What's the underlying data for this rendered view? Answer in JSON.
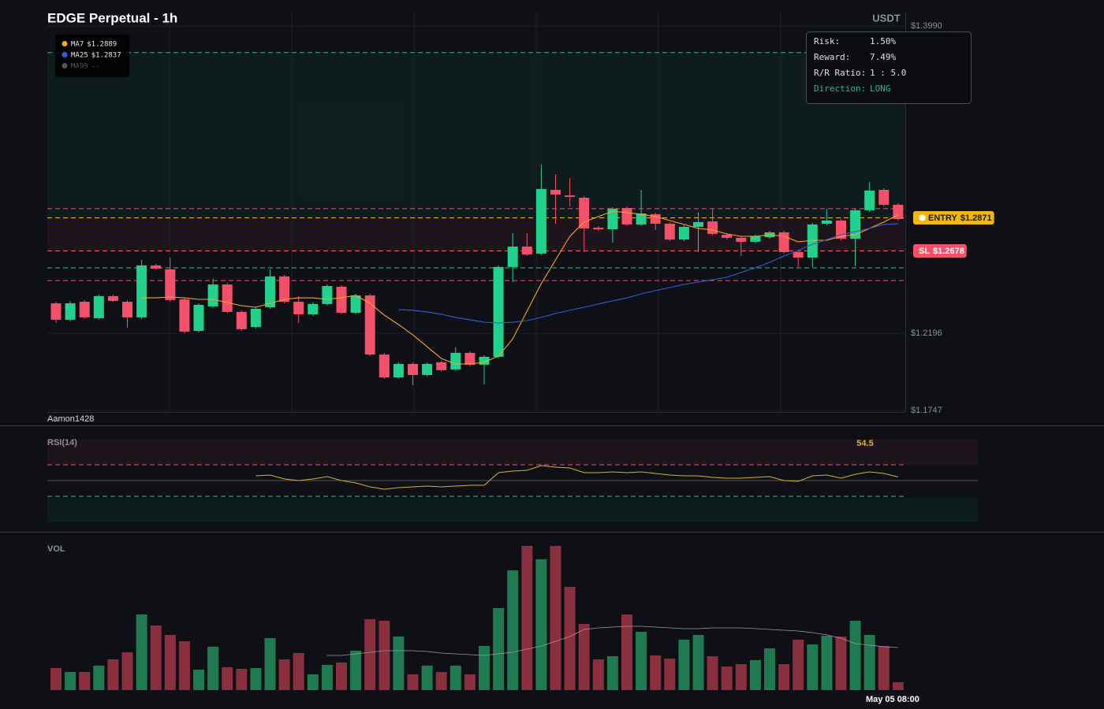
{
  "chart_data": [
    {
      "type": "candlestick",
      "title": "EDGE Perpetual - 1h",
      "y_label": "USDT",
      "watermark": "Aamon1428",
      "up_color": "#22d18b",
      "down_color": "#f4506a",
      "ylim": [
        1.1747,
        1.399
      ],
      "yticks": [
        {
          "value": 1.1747,
          "label": "$1.1747"
        },
        {
          "value": 1.2196,
          "label": "$1.2196"
        },
        {
          "value": 1.399,
          "label": "$1.3990"
        }
      ],
      "open": [
        1.2372,
        1.2276,
        1.2381,
        1.2285,
        1.2414,
        1.2381,
        1.229,
        1.2593,
        1.257,
        1.2395,
        1.2211,
        1.2354,
        1.2482,
        1.2322,
        1.2234,
        1.2349,
        1.2529,
        1.2381,
        1.2308,
        1.2368,
        1.2469,
        1.2317,
        1.2418,
        1.2073,
        1.194,
        1.2018,
        1.1954,
        1.2028,
        1.1986,
        1.2083,
        1.2014,
        1.206,
        1.2584,
        1.2703,
        1.2662,
        1.3034,
        1.3002,
        1.2988,
        1.2813,
        1.2804,
        1.2928,
        1.2832,
        1.2892,
        1.2836,
        1.2744,
        1.2818,
        1.285,
        1.2772,
        1.2754,
        1.2731,
        1.2758,
        1.2786,
        1.2671,
        1.2639,
        1.2836,
        1.2855,
        1.2749,
        1.2915,
        1.3034,
        1.2947
      ],
      "high": [
        1.2381,
        1.2386,
        1.239,
        1.2423,
        1.2423,
        1.239,
        1.2625,
        1.2602,
        1.2639,
        1.2404,
        1.2372,
        1.2515,
        1.2491,
        1.2331,
        1.2349,
        1.257,
        1.2538,
        1.2414,
        1.2377,
        1.2482,
        1.2478,
        1.2427,
        1.2427,
        1.2082,
        1.2027,
        1.2027,
        1.2027,
        1.2037,
        1.2115,
        1.2092,
        1.2069,
        1.2593,
        1.2781,
        1.2781,
        1.3181,
        1.3126,
        1.3103,
        1.2997,
        1.2822,
        1.2933,
        1.2937,
        1.3034,
        1.2901,
        1.2845,
        1.2827,
        1.2901,
        1.2924,
        1.2781,
        1.2763,
        1.2772,
        1.2795,
        1.2795,
        1.268,
        1.2841,
        1.2924,
        1.2864,
        1.2924,
        1.308,
        1.3043,
        1.2956
      ],
      "low": [
        1.2257,
        1.2267,
        1.2281,
        1.2276,
        1.2381,
        1.223,
        1.2281,
        1.257,
        1.2381,
        1.2198,
        1.2202,
        1.2345,
        1.2313,
        1.2212,
        1.2225,
        1.234,
        1.2372,
        1.2257,
        1.2299,
        1.2359,
        1.2308,
        1.2308,
        1.2064,
        1.1931,
        1.1931,
        1.1894,
        1.1945,
        1.1973,
        1.1977,
        1.2005,
        1.1899,
        1.2051,
        1.2496,
        1.2648,
        1.2653,
        1.2836,
        1.2938,
        1.2671,
        1.2795,
        1.2726,
        1.2823,
        1.2823,
        1.28,
        1.2735,
        1.2735,
        1.2671,
        1.2768,
        1.2745,
        1.2648,
        1.2722,
        1.2749,
        1.2662,
        1.2584,
        1.2584,
        1.2827,
        1.274,
        1.2588,
        1.2906,
        1.2938,
        1.2855
      ],
      "close": [
        1.2276,
        1.2372,
        1.229,
        1.2414,
        1.2386,
        1.229,
        1.2593,
        1.2574,
        1.2391,
        1.2207,
        1.2363,
        1.2482,
        1.2322,
        1.2221,
        1.234,
        1.2529,
        1.2381,
        1.2308,
        1.2368,
        1.2473,
        1.2317,
        1.2418,
        1.2073,
        1.194,
        1.2018,
        1.1954,
        1.2018,
        1.1982,
        1.2083,
        1.2014,
        1.206,
        1.2584,
        1.2703,
        1.2657,
        1.3039,
        1.3007,
        1.2993,
        1.2809,
        1.2804,
        1.2924,
        1.2832,
        1.2896,
        1.2836,
        1.2744,
        1.2818,
        1.2846,
        1.2777,
        1.2754,
        1.2731,
        1.2763,
        1.2786,
        1.2671,
        1.2639,
        1.2832,
        1.2855,
        1.2749,
        1.2915,
        1.303,
        1.2947,
        1.2864
      ],
      "overlays": [
        {
          "name": "MA7",
          "color": "#f5a623",
          "last_label": "$1.2889",
          "values": [
            null,
            null,
            null,
            null,
            null,
            null,
            1.2404,
            1.2404,
            1.2409,
            1.2404,
            1.2395,
            1.2395,
            1.2377,
            1.2358,
            1.2349,
            1.2372,
            1.2395,
            1.2404,
            1.2404,
            1.2395,
            1.2404,
            1.2418,
            1.2372,
            1.2303,
            1.2248,
            1.2188,
            1.2119,
            1.205,
            1.2018,
            1.2018,
            1.2028,
            1.2064,
            1.2165,
            1.2326,
            1.2487,
            1.2625,
            1.2763,
            1.2846,
            1.2878,
            1.291,
            1.2901,
            1.2892,
            1.2878,
            1.2855,
            1.2832,
            1.2809,
            1.28,
            1.2777,
            1.2763,
            1.2763,
            1.2772,
            1.2763,
            1.2731,
            1.274,
            1.274,
            1.2763,
            1.2772,
            1.2809,
            1.2846,
            1.2889
          ]
        },
        {
          "name": "MA25",
          "color": "#2f5fd8",
          "last_label": "$1.2837",
          "values": [
            null,
            null,
            null,
            null,
            null,
            null,
            null,
            null,
            null,
            null,
            null,
            null,
            null,
            null,
            null,
            null,
            null,
            null,
            null,
            null,
            null,
            null,
            null,
            null,
            1.2336,
            1.2331,
            1.2322,
            1.2308,
            1.229,
            1.2276,
            1.2262,
            1.2257,
            1.2262,
            1.2271,
            1.229,
            1.2313,
            1.2331,
            1.2349,
            1.2368,
            1.2386,
            1.2404,
            1.2427,
            1.2446,
            1.2464,
            1.2482,
            1.2496,
            1.251,
            1.2524,
            1.2552,
            1.2579,
            1.2611,
            1.2648,
            1.268,
            1.2717,
            1.2744,
            1.2772,
            1.279,
            1.2809,
            1.2832,
            1.2837
          ]
        },
        {
          "name": "MA99",
          "color": "#555555",
          "last_label": "--"
        }
      ],
      "entry": {
        "name": "ENTRY",
        "value": 1.2871,
        "label": "$1.2871",
        "color": "#f0b90b"
      },
      "stop_loss": {
        "name": "SL",
        "value": 1.2678,
        "label": "$1.2678",
        "color": "#f4506a"
      },
      "take_profit": {
        "value": 1.3835,
        "color": "#2ebd85"
      },
      "levels": [
        {
          "value": 1.2924,
          "color": "#f4506a"
        },
        {
          "value": 1.2579,
          "color": "#2ebd85"
        },
        {
          "value": 1.2505,
          "color": "#f4506a"
        }
      ]
    },
    {
      "type": "line",
      "title": "RSI(14)",
      "color": "#d9b02a",
      "ylim": [
        0,
        100
      ],
      "levels": [
        70,
        50,
        30
      ],
      "level_colors": [
        "#f4506a",
        "#555555",
        "#2ebd85"
      ],
      "value_label": "54.5",
      "values": [
        null,
        null,
        null,
        null,
        null,
        null,
        null,
        null,
        null,
        null,
        null,
        null,
        null,
        null,
        56,
        57,
        52,
        50,
        52,
        55,
        50,
        47,
        42,
        39,
        41,
        42,
        43,
        42,
        43,
        44,
        44,
        60,
        62,
        63,
        69,
        67,
        66,
        60,
        60,
        61,
        60,
        61,
        59,
        57,
        56,
        56,
        54,
        53,
        53,
        54,
        55,
        50,
        49,
        56,
        57,
        53,
        58,
        61,
        59,
        54.5
      ]
    },
    {
      "type": "bar",
      "title": "VOL",
      "up_color": "#1f7a52",
      "down_color": "#8a2f3e",
      "ylim": [
        0,
        190
      ],
      "categories": [
        null,
        null,
        null,
        null,
        null,
        null,
        null,
        null,
        null,
        null,
        null,
        null,
        null,
        null,
        null,
        null,
        null,
        null,
        null,
        null,
        null,
        null,
        null,
        null,
        null,
        null,
        null,
        null,
        null,
        null,
        null,
        null,
        null,
        null,
        null,
        null,
        null,
        null,
        null,
        null,
        null,
        null,
        null,
        null,
        null,
        null,
        null,
        null,
        null,
        null,
        null,
        null,
        null,
        null,
        null,
        null,
        null,
        null,
        null,
        "May 05 08:00"
      ],
      "values": [
        28,
        23,
        23,
        31,
        39,
        48,
        96,
        82,
        70,
        62,
        26,
        55,
        29,
        27,
        28,
        66,
        39,
        47,
        20,
        32,
        35,
        50,
        90,
        88,
        68,
        20,
        31,
        23,
        31,
        20,
        56,
        104,
        152,
        183,
        166,
        183,
        131,
        84,
        39,
        43,
        96,
        74,
        44,
        40,
        64,
        70,
        43,
        30,
        33,
        38,
        53,
        33,
        64,
        58,
        69,
        68,
        88,
        70,
        56,
        10
      ],
      "ma": {
        "color": "#9a9a9a",
        "values": [
          null,
          null,
          null,
          null,
          null,
          null,
          null,
          null,
          null,
          null,
          null,
          null,
          null,
          null,
          null,
          null,
          null,
          null,
          null,
          44,
          44,
          46,
          48,
          50,
          50,
          50,
          49,
          47,
          46,
          45,
          44,
          46,
          48,
          52,
          56,
          62,
          68,
          77,
          79,
          80,
          81,
          81,
          80,
          79,
          78,
          78,
          79,
          79,
          79,
          78,
          77,
          76,
          75,
          73,
          70,
          66,
          59,
          57,
          55,
          54
        ]
      }
    }
  ],
  "risk_panel": {
    "rows": [
      [
        "Risk:",
        "1.50%"
      ],
      [
        "Reward:",
        "7.49%"
      ],
      [
        "R/R Ratio:",
        "1 : 5.0"
      ],
      [
        "Direction:",
        "LONG"
      ]
    ]
  }
}
